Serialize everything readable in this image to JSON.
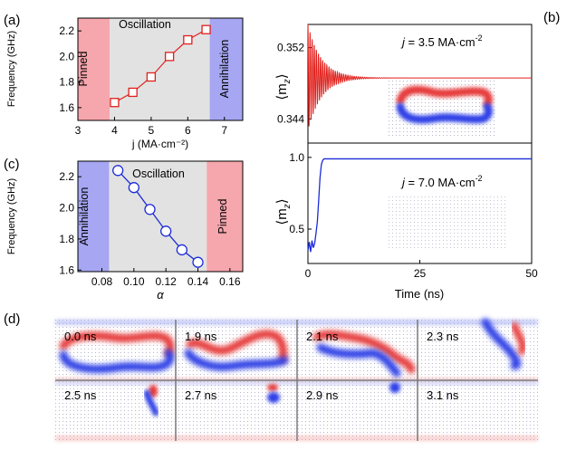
{
  "panels": {
    "a": {
      "label": "(a)",
      "regions": [
        "Pinned",
        "Oscillation",
        "Annihilation"
      ],
      "colors": {
        "pinned": "#f6a6ad",
        "oscillation": "#e2e2e2",
        "annihilation": "#a6a6f2",
        "series": "#e0201c"
      }
    },
    "b": {
      "label": "(b)",
      "top_annotation": {
        "prefix": "j",
        "text": " = 3.5 MA·cm",
        "sup": "-2"
      },
      "bottom_annotation": {
        "prefix": "j",
        "text": " = 7.0 MA·cm",
        "sup": "-2"
      },
      "colors": {
        "top": "#e0201c",
        "bottom": "#1c2cd8"
      }
    },
    "c": {
      "label": "(c)",
      "regions": [
        "Annihilation",
        "Oscillation",
        "Pinned"
      ],
      "colors": {
        "series": "#1c2cd8"
      }
    },
    "d": {
      "label": "(d)",
      "frames": [
        "0.0 ns",
        "1.9 ns",
        "2.1 ns",
        "2.3 ns",
        "2.5 ns",
        "2.7 ns",
        "2.9 ns",
        "3.1 ns"
      ]
    }
  },
  "chart_data": [
    {
      "id": "a",
      "type": "line",
      "title": "",
      "xlabel": "j (MA·cm⁻²)",
      "ylabel": "Frequency (GHz)",
      "xlim": [
        3,
        7.5
      ],
      "ylim": [
        1.5,
        2.3
      ],
      "xticks": [
        3,
        4,
        5,
        6,
        7
      ],
      "yticks": [
        1.6,
        1.8,
        2.0,
        2.2
      ],
      "xtick_labels": [
        "3",
        "4",
        "5",
        "6",
        "7"
      ],
      "ytick_labels": [
        "1.6",
        "1.8",
        "2.0",
        "2.2"
      ],
      "region_bounds": [
        3.87,
        6.6
      ],
      "x": [
        4.0,
        4.5,
        5.0,
        5.5,
        6.0,
        6.5
      ],
      "y": [
        1.64,
        1.72,
        1.84,
        2.0,
        2.13,
        2.21
      ],
      "marker": "square"
    },
    {
      "id": "b_top",
      "type": "line",
      "xlabel": "",
      "ylabel": "⟨m_z⟩",
      "ylabel_main": "⟨m",
      "ylabel_sub": "z",
      "ylabel_close": "⟩",
      "xlim": [
        0,
        50
      ],
      "ylim": [
        0.3413,
        0.3546
      ],
      "yticks": [
        0.344,
        0.352
      ],
      "ytick_labels": [
        "0.344",
        "0.352"
      ],
      "model": "damped oscillation",
      "final_value": 0.3486,
      "initial_amplitude": 0.006,
      "decay_time_ns": 3.0,
      "period_ns": 0.47
    },
    {
      "id": "b_bottom",
      "type": "line",
      "xlabel": "Time (ns)",
      "ylabel": "⟨m_z⟩",
      "ylabel_main": "⟨m",
      "ylabel_sub": "z",
      "ylabel_close": "⟩",
      "xlim": [
        0,
        50
      ],
      "ylim": [
        0.26,
        1.1
      ],
      "xticks": [
        0,
        25,
        50
      ],
      "xtick_labels": [
        "0",
        "25",
        "50"
      ],
      "yticks": [
        0.5,
        1.0
      ],
      "ytick_labels": [
        "0.5",
        "1.0"
      ],
      "x": [
        0,
        0.3,
        0.6,
        0.9,
        1.2,
        1.5,
        1.8,
        2.1,
        2.4,
        2.7,
        3.0,
        3.3,
        3.6,
        3.9,
        4.5,
        10,
        20,
        30,
        40,
        50
      ],
      "y": [
        0.35,
        0.41,
        0.34,
        0.42,
        0.37,
        0.4,
        0.47,
        0.55,
        0.7,
        0.86,
        0.95,
        0.98,
        0.99,
        0.99,
        0.99,
        0.99,
        0.99,
        0.99,
        0.99,
        0.99
      ]
    },
    {
      "id": "c",
      "type": "line",
      "xlabel": "α",
      "ylabel": "Frequency (GHz)",
      "xlim": [
        0.065,
        0.168
      ],
      "ylim": [
        1.59,
        2.3
      ],
      "xticks": [
        0.08,
        0.1,
        0.12,
        0.14,
        0.16
      ],
      "yticks": [
        1.6,
        1.8,
        2.0,
        2.2
      ],
      "xtick_labels": [
        "0.08",
        "0.10",
        "0.12",
        "0.14",
        "0.16"
      ],
      "ytick_labels": [
        "1.6",
        "1.8",
        "2.0",
        "2.2"
      ],
      "region_bounds": [
        0.0845,
        0.1455
      ],
      "x": [
        0.09,
        0.1,
        0.11,
        0.12,
        0.13,
        0.14
      ],
      "y": [
        2.24,
        2.13,
        1.99,
        1.85,
        1.73,
        1.65
      ],
      "marker": "circle"
    }
  ]
}
